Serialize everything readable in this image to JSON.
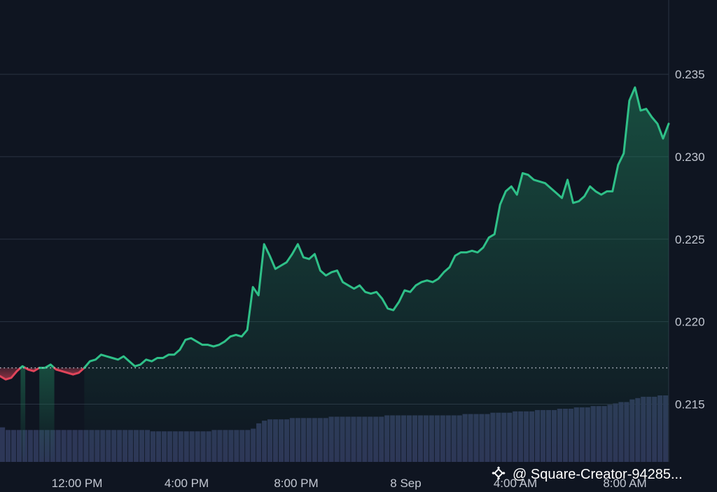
{
  "chart_data": {
    "type": "area",
    "x_ticks": [
      "12:00 PM",
      "4:00 PM",
      "8:00 PM",
      "8 Sep",
      "4:00 AM",
      "8:00 AM"
    ],
    "y_ticks": [
      "0.235",
      "0.230",
      "0.225",
      "0.220",
      "0.215"
    ],
    "ylim": [
      0.2115,
      0.2395
    ],
    "baseline": 0.2172,
    "grid": true,
    "colors": {
      "background": "#0f1521",
      "grid": "#2a3342",
      "up_line": "#2fc088",
      "down_line": "#e0445a",
      "volume": "#2d3757",
      "baseline_dots": "#b8bfca"
    },
    "series": [
      {
        "values": [
          0.2167,
          0.2165,
          0.2166,
          0.217,
          0.2173,
          0.2171,
          0.217,
          0.2172,
          0.2172,
          0.2174,
          0.2171,
          0.217,
          0.2169,
          0.2168,
          0.2169,
          0.2172,
          0.2176,
          0.2177,
          0.218,
          0.2179,
          0.2178,
          0.2177,
          0.2179,
          0.2176,
          0.2173,
          0.2174,
          0.2177,
          0.2176,
          0.2178,
          0.2178,
          0.218,
          0.218,
          0.2183,
          0.2189,
          0.219,
          0.2188,
          0.2186,
          0.2186,
          0.2185,
          0.2186,
          0.2188,
          0.2191,
          0.2192,
          0.2191,
          0.2195,
          0.2221,
          0.2216,
          0.2247,
          0.224,
          0.2232,
          0.2234,
          0.2236,
          0.2241,
          0.2247,
          0.2239,
          0.2238,
          0.2241,
          0.2231,
          0.2228,
          0.223,
          0.2231,
          0.2224,
          0.2222,
          0.222,
          0.2222,
          0.2218,
          0.2217,
          0.2218,
          0.2214,
          0.2208,
          0.2207,
          0.2212,
          0.2219,
          0.2218,
          0.2222,
          0.2224,
          0.2225,
          0.2224,
          0.2226,
          0.223,
          0.2233,
          0.224,
          0.2242,
          0.2242,
          0.2243,
          0.2242,
          0.2245,
          0.2251,
          0.2253,
          0.2271,
          0.2279,
          0.2282,
          0.2277,
          0.229,
          0.2289,
          0.2286,
          0.2285,
          0.2284,
          0.2281,
          0.2278,
          0.2275,
          0.2286,
          0.2272,
          0.2273,
          0.2276,
          0.2282,
          0.2279,
          0.2277,
          0.2279,
          0.2279,
          0.2295,
          0.2302,
          0.2334,
          0.2342,
          0.2328,
          0.2329,
          0.2324,
          0.232,
          0.2311,
          0.232
        ]
      }
    ],
    "volume": [
      0.26,
      0.24,
      0.24,
      0.24,
      0.24,
      0.24,
      0.24,
      0.24,
      0.24,
      0.24,
      0.24,
      0.24,
      0.24,
      0.24,
      0.24,
      0.24,
      0.24,
      0.24,
      0.24,
      0.24,
      0.24,
      0.24,
      0.24,
      0.24,
      0.24,
      0.24,
      0.24,
      0.23,
      0.23,
      0.23,
      0.23,
      0.23,
      0.23,
      0.23,
      0.23,
      0.23,
      0.23,
      0.23,
      0.24,
      0.24,
      0.24,
      0.24,
      0.24,
      0.24,
      0.24,
      0.25,
      0.29,
      0.31,
      0.32,
      0.32,
      0.32,
      0.32,
      0.33,
      0.33,
      0.33,
      0.33,
      0.33,
      0.33,
      0.33,
      0.34,
      0.34,
      0.34,
      0.34,
      0.34,
      0.34,
      0.34,
      0.34,
      0.34,
      0.34,
      0.35,
      0.35,
      0.35,
      0.35,
      0.35,
      0.35,
      0.35,
      0.35,
      0.35,
      0.35,
      0.35,
      0.35,
      0.35,
      0.35,
      0.36,
      0.36,
      0.36,
      0.36,
      0.36,
      0.37,
      0.37,
      0.37,
      0.37,
      0.38,
      0.38,
      0.38,
      0.38,
      0.39,
      0.39,
      0.39,
      0.39,
      0.4,
      0.4,
      0.4,
      0.41,
      0.41,
      0.41,
      0.42,
      0.42,
      0.42,
      0.43,
      0.44,
      0.45,
      0.45,
      0.47,
      0.48,
      0.49,
      0.49,
      0.49,
      0.5,
      0.5
    ]
  },
  "watermark": {
    "text": "@ Square-Creator-94285...",
    "icon": "binance-diamond-icon"
  }
}
